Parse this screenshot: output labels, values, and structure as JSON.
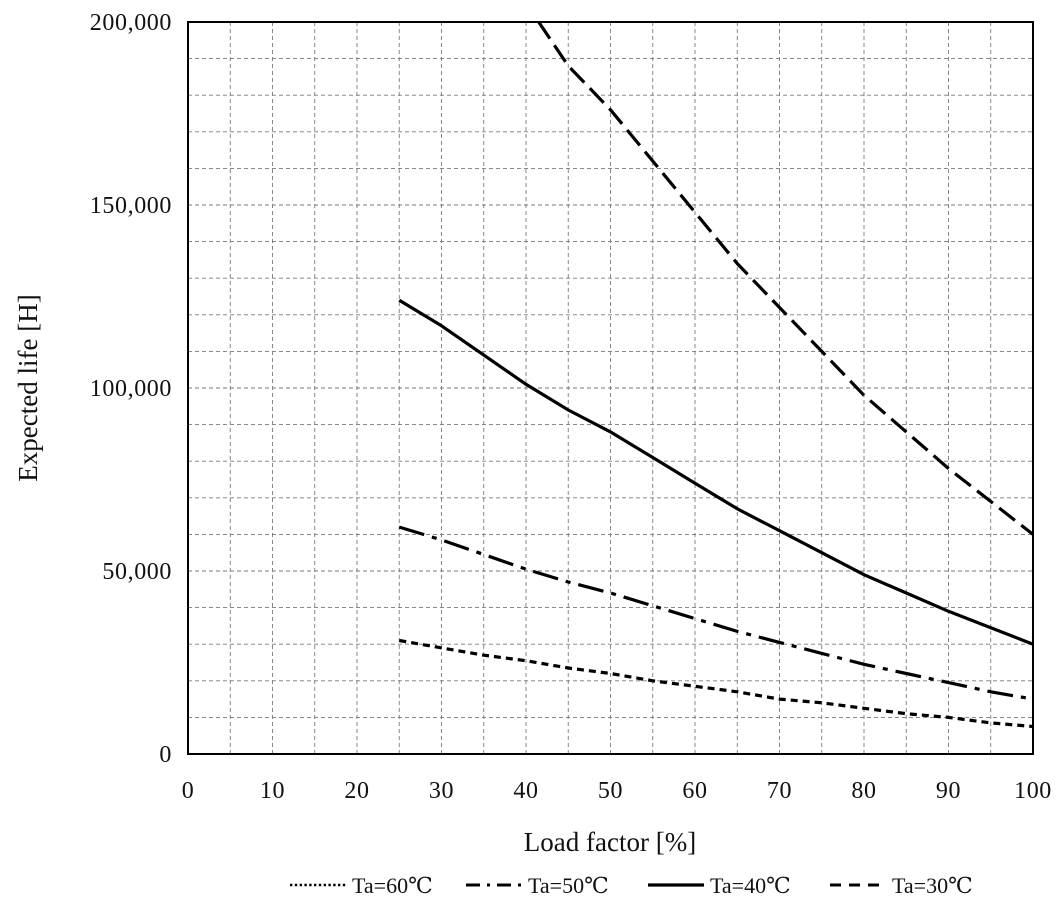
{
  "chart_data": {
    "type": "line",
    "xlabel": "Load factor [%]",
    "ylabel": "Expected life [H]",
    "xlim": [
      0,
      100
    ],
    "ylim": [
      0,
      200000
    ],
    "xticks": [
      0,
      10,
      20,
      30,
      40,
      50,
      60,
      70,
      80,
      90,
      100
    ],
    "xtick_labels": [
      "0",
      "10",
      "20",
      "30",
      "40",
      "50",
      "60",
      "70",
      "80",
      "90",
      "100"
    ],
    "yticks": [
      0,
      50000,
      100000,
      150000,
      200000
    ],
    "ytick_labels": [
      "0",
      "50,000",
      "100,000",
      "150,000",
      "200,000"
    ],
    "grid": true,
    "grid_x_step": 5,
    "grid_y_step": 10000,
    "legend_position": "bottom",
    "series": [
      {
        "name": "Ta=60℃",
        "line_style": "dotted",
        "color": "#000000",
        "x": [
          25,
          30,
          35,
          40,
          45,
          50,
          55,
          60,
          65,
          70,
          75,
          80,
          85,
          90,
          95,
          100
        ],
        "y": [
          31000,
          29000,
          27000,
          25500,
          23500,
          22000,
          20000,
          18500,
          17000,
          15000,
          14000,
          12500,
          11000,
          10000,
          8500,
          7500
        ]
      },
      {
        "name": "Ta=50℃",
        "line_style": "dash-dot",
        "color": "#000000",
        "x": [
          25,
          30,
          35,
          40,
          45,
          50,
          55,
          60,
          65,
          70,
          75,
          80,
          85,
          90,
          95,
          100
        ],
        "y": [
          62000,
          58500,
          54500,
          50500,
          47000,
          44000,
          40500,
          37000,
          33500,
          30500,
          27500,
          24500,
          22000,
          19500,
          17000,
          15000
        ]
      },
      {
        "name": "Ta=40℃",
        "line_style": "solid",
        "color": "#000000",
        "x": [
          25,
          30,
          35,
          40,
          45,
          50,
          55,
          60,
          65,
          70,
          75,
          80,
          85,
          90,
          95,
          100
        ],
        "y": [
          124000,
          117000,
          109000,
          101000,
          94000,
          88000,
          81000,
          74000,
          67000,
          61000,
          55000,
          49000,
          44000,
          39000,
          34500,
          30000
        ]
      },
      {
        "name": "Ta=30℃",
        "line_style": "dashed",
        "color": "#000000",
        "x": [
          41.5,
          45,
          50,
          55,
          60,
          65,
          70,
          75,
          80,
          85,
          90,
          95,
          100
        ],
        "y": [
          200000,
          188000,
          176000,
          162000,
          148000,
          134000,
          122000,
          110000,
          98000,
          88000,
          78000,
          69000,
          60000
        ]
      }
    ]
  }
}
